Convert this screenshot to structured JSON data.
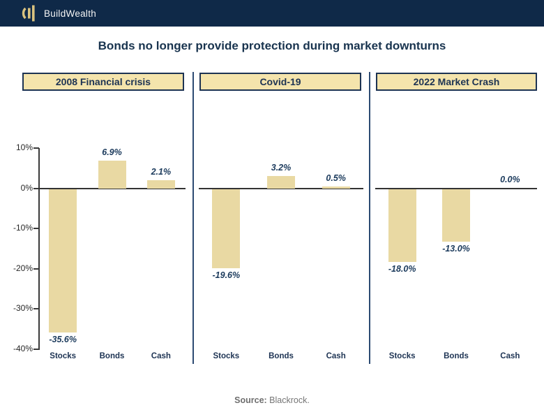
{
  "brand": {
    "name": "BuildWealth"
  },
  "title": "Bonds no longer provide protection during market downturns",
  "source": {
    "label": "Source:",
    "text": " Blackrock."
  },
  "colors": {
    "header_bg": "#0f2948",
    "navy_text": "#1b3a5c",
    "bar_fill": "#e9d9a3",
    "panel_header_bg": "#f4e4ac",
    "panel_header_border": "#1d3353",
    "divider": "#2c4a72",
    "axis": "#3a3a3a",
    "logo_gold": "#d9c27f",
    "source_gray": "#757575"
  },
  "chart_data": {
    "type": "bar",
    "title": "Bonds no longer provide protection during market downturns",
    "categories": [
      "Stocks",
      "Bonds",
      "Cash"
    ],
    "panels": [
      {
        "title": "2008 Financial crisis",
        "values": [
          -35.6,
          6.9,
          2.1
        ],
        "value_labels": [
          "-35.6%",
          "6.9%",
          "2.1%"
        ]
      },
      {
        "title": "Covid-19",
        "values": [
          -19.6,
          3.2,
          0.5
        ],
        "value_labels": [
          "-19.6%",
          "3.2%",
          "0.5%"
        ]
      },
      {
        "title": "2022 Market Crash",
        "values": [
          -18.0,
          -13.0,
          0.0
        ],
        "value_labels": [
          "-18.0%",
          "-13.0%",
          "0.0%"
        ]
      }
    ],
    "ylabel": "",
    "xlabel": "",
    "ylim": [
      -40,
      10
    ],
    "ytick_values": [
      10,
      0,
      -10,
      -20,
      -30,
      -40
    ],
    "ytick_labels": [
      "10%",
      "0%",
      "-10%",
      "-20%",
      "-30%",
      "-40%"
    ],
    "grid": false,
    "legend": false,
    "bar_color": "#e9d9a3",
    "source": "Blackrock."
  }
}
